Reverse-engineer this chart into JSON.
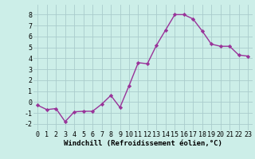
{
  "x": [
    0,
    1,
    2,
    3,
    4,
    5,
    6,
    7,
    8,
    9,
    10,
    11,
    12,
    13,
    14,
    15,
    16,
    17,
    18,
    19,
    20,
    21,
    22,
    23
  ],
  "y": [
    -0.3,
    -0.7,
    -0.6,
    -1.8,
    -0.9,
    -0.85,
    -0.85,
    -0.2,
    0.6,
    -0.5,
    1.5,
    3.6,
    3.5,
    5.2,
    6.6,
    8.0,
    8.0,
    7.6,
    6.5,
    5.3,
    5.1,
    5.1,
    4.3,
    4.2
  ],
  "line_color": "#993399",
  "marker": "D",
  "markersize": 2.2,
  "linewidth": 1.0,
  "bg_color": "#cceee8",
  "grid_color": "#aacccc",
  "xlabel": "Windchill (Refroidissement éolien,°C)",
  "xlabel_fontsize": 6.5,
  "ylabel_ticks": [
    -2,
    -1,
    0,
    1,
    2,
    3,
    4,
    5,
    6,
    7,
    8
  ],
  "xlim": [
    -0.5,
    23.5
  ],
  "ylim": [
    -2.6,
    8.9
  ],
  "tick_fontsize": 6.0,
  "xlabel_bold": true
}
